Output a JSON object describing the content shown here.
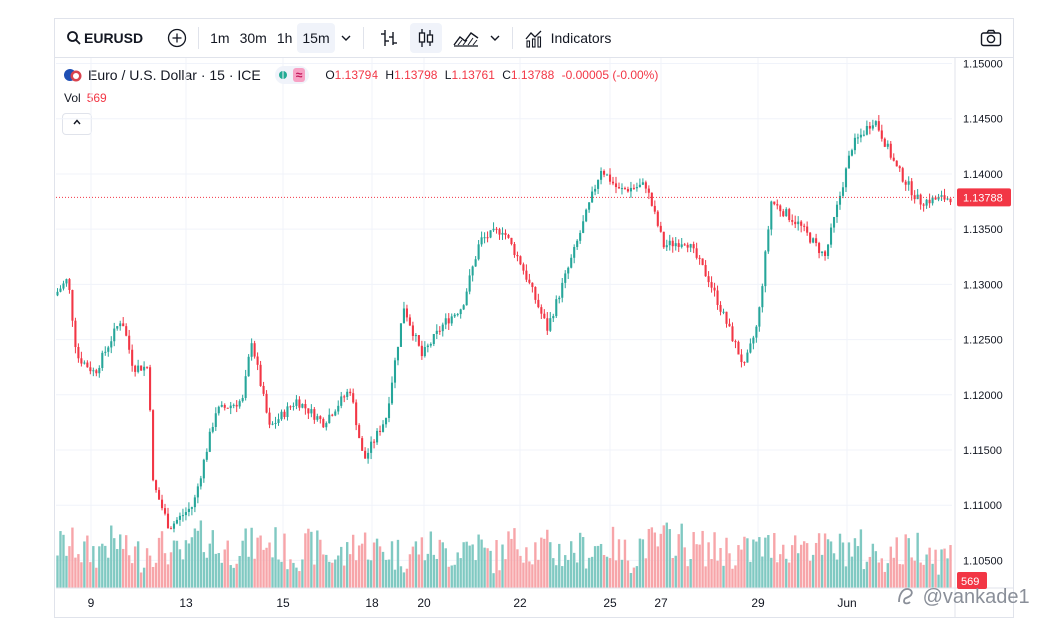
{
  "toolbar": {
    "symbol": "EURUSD",
    "intervals": [
      "1m",
      "30m",
      "1h",
      "15m"
    ],
    "active_interval": "15m",
    "indicators_label": "Indicators",
    "icons": [
      "search-icon",
      "add-symbol-icon",
      "chevron-down-icon",
      "bar-style-icon",
      "candles-icon",
      "area-style-icon",
      "indicators-icon",
      "camera-icon"
    ]
  },
  "legend": {
    "title": "Euro / U.S. Dollar · 15 · ICE",
    "open_label": "O",
    "open": "1.13794",
    "high_label": "H",
    "high": "1.13798",
    "low_label": "L",
    "low": "1.13761",
    "close_label": "C",
    "close": "1.13788",
    "change": "-0.00005 (-0.00%)",
    "vol_label": "Vol",
    "vol_value": "569"
  },
  "watermark": "@vankade1",
  "colors": {
    "up": "#26a69a",
    "down": "#f23645",
    "up_vol": "#80c9c2",
    "down_vol": "#f7a5a9"
  },
  "chart_data": {
    "type": "candlestick",
    "title": "Euro / U.S. Dollar · 15 · ICE",
    "x_tick_labels": [
      "9",
      "13",
      "15",
      "18",
      "20",
      "22",
      "25",
      "27",
      "29",
      "Jun"
    ],
    "y_tick_labels": [
      "1.10500",
      "1.11000",
      "1.11500",
      "1.12000",
      "1.12500",
      "1.13000",
      "1.13500",
      "1.14000",
      "1.14500",
      "1.15000"
    ],
    "ylim": [
      1.1025,
      1.1505
    ],
    "last_price": 1.13788,
    "last_price_label": "1.13788",
    "last_volume_label": "569",
    "grid": true,
    "price_path": [
      {
        "t": 0.0,
        "p": 1.129
      },
      {
        "t": 0.015,
        "p": 1.1305
      },
      {
        "t": 0.025,
        "p": 1.1235
      },
      {
        "t": 0.045,
        "p": 1.122
      },
      {
        "t": 0.06,
        "p": 1.1245
      },
      {
        "t": 0.075,
        "p": 1.127
      },
      {
        "t": 0.088,
        "p": 1.1225
      },
      {
        "t": 0.105,
        "p": 1.1225
      },
      {
        "t": 0.11,
        "p": 1.112
      },
      {
        "t": 0.128,
        "p": 1.108
      },
      {
        "t": 0.155,
        "p": 1.11
      },
      {
        "t": 0.18,
        "p": 1.1185
      },
      {
        "t": 0.21,
        "p": 1.1195
      },
      {
        "t": 0.22,
        "p": 1.125
      },
      {
        "t": 0.24,
        "p": 1.117
      },
      {
        "t": 0.27,
        "p": 1.1195
      },
      {
        "t": 0.3,
        "p": 1.1175
      },
      {
        "t": 0.33,
        "p": 1.1205
      },
      {
        "t": 0.345,
        "p": 1.114
      },
      {
        "t": 0.37,
        "p": 1.118
      },
      {
        "t": 0.39,
        "p": 1.128
      },
      {
        "t": 0.41,
        "p": 1.1235
      },
      {
        "t": 0.435,
        "p": 1.1265
      },
      {
        "t": 0.455,
        "p": 1.128
      },
      {
        "t": 0.475,
        "p": 1.134
      },
      {
        "t": 0.5,
        "p": 1.135
      },
      {
        "t": 0.52,
        "p": 1.132
      },
      {
        "t": 0.55,
        "p": 1.126
      },
      {
        "t": 0.58,
        "p": 1.133
      },
      {
        "t": 0.61,
        "p": 1.1405
      },
      {
        "t": 0.63,
        "p": 1.1385
      },
      {
        "t": 0.66,
        "p": 1.139
      },
      {
        "t": 0.68,
        "p": 1.1335
      },
      {
        "t": 0.705,
        "p": 1.134
      },
      {
        "t": 0.73,
        "p": 1.1305
      },
      {
        "t": 0.77,
        "p": 1.1225
      },
      {
        "t": 0.785,
        "p": 1.1265
      },
      {
        "t": 0.8,
        "p": 1.1375
      },
      {
        "t": 0.83,
        "p": 1.1355
      },
      {
        "t": 0.86,
        "p": 1.1325
      },
      {
        "t": 0.875,
        "p": 1.1375
      },
      {
        "t": 0.89,
        "p": 1.1425
      },
      {
        "t": 0.915,
        "p": 1.145
      },
      {
        "t": 0.94,
        "p": 1.1405
      },
      {
        "t": 0.965,
        "p": 1.1375
      },
      {
        "t": 1.0,
        "p": 1.13788
      }
    ],
    "volume_profile": [
      0.55,
      0.4,
      0.6,
      0.35,
      0.5,
      0.3,
      0.7,
      0.45,
      0.55,
      0.6,
      0.4,
      0.5,
      0.3,
      0.6,
      0.45,
      0.35,
      0.5,
      0.4,
      0.55,
      0.3,
      0.6,
      0.5,
      0.4,
      0.45,
      0.55,
      0.35,
      0.6,
      0.7,
      0.5,
      0.45,
      0.4,
      0.5,
      0.55,
      0.6,
      0.45,
      0.5,
      0.35,
      0.4,
      0.55,
      0.3
    ]
  }
}
